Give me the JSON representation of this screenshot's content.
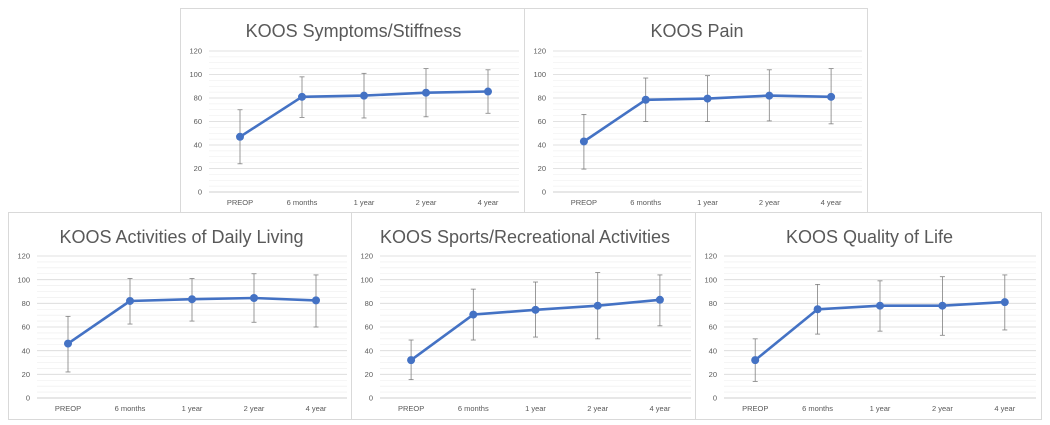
{
  "figure": {
    "chart_data": [
      {
        "type": "line",
        "title": "KOOS Symptoms/Stiffness",
        "categories": [
          "PREOP",
          "6 months",
          "1 year",
          "2 year",
          "4 year"
        ],
        "values": [
          47,
          81,
          82,
          84.5,
          85.5
        ],
        "error_low": [
          24,
          63.5,
          63,
          64,
          67
        ],
        "error_high": [
          70,
          98,
          101,
          105,
          104
        ],
        "ylim": [
          0,
          120
        ],
        "yticks": [
          "0",
          "20",
          "40",
          "60",
          "80",
          "100",
          "120"
        ],
        "grid": true,
        "color": "#4472c4"
      },
      {
        "type": "line",
        "title": "KOOS Pain",
        "categories": [
          "PREOP",
          "6 months",
          "1 year",
          "2 year",
          "4 year"
        ],
        "values": [
          43,
          78.5,
          79.5,
          82,
          81
        ],
        "error_low": [
          19.5,
          60,
          60,
          60.5,
          58
        ],
        "error_high": [
          66,
          97,
          99,
          104,
          105
        ],
        "ylim": [
          0,
          120
        ],
        "yticks": [
          "0",
          "20",
          "40",
          "60",
          "80",
          "100",
          "120"
        ],
        "grid": true,
        "color": "#4472c4"
      },
      {
        "type": "line",
        "title": "KOOS Activities of Daily Living",
        "categories": [
          "PREOP",
          "6 months",
          "1 year",
          "2 year",
          "4 year"
        ],
        "values": [
          46,
          82,
          83.5,
          84.5,
          82.5
        ],
        "error_low": [
          22,
          62.5,
          65,
          64,
          60
        ],
        "error_high": [
          69,
          101,
          101,
          105,
          104
        ],
        "ylim": [
          0,
          120
        ],
        "yticks": [
          "0",
          "20",
          "40",
          "60",
          "80",
          "100",
          "120"
        ],
        "grid": true,
        "color": "#4472c4"
      },
      {
        "type": "line",
        "title": "KOOS Sports/Recreational Activities",
        "categories": [
          "PREOP",
          "6 months",
          "1 year",
          "2 year",
          "4 year"
        ],
        "values": [
          32,
          70.5,
          74.5,
          78,
          83
        ],
        "error_low": [
          15.5,
          49,
          51.5,
          50,
          61
        ],
        "error_high": [
          49,
          92,
          98,
          106,
          104
        ],
        "ylim": [
          0,
          120
        ],
        "yticks": [
          "0",
          "20",
          "40",
          "60",
          "80",
          "100",
          "120"
        ],
        "grid": true,
        "color": "#4472c4"
      },
      {
        "type": "line",
        "title": "KOOS Quality of Life",
        "categories": [
          "PREOP",
          "6 months",
          "1 year",
          "2 year",
          "4 year"
        ],
        "values": [
          32,
          75,
          78,
          78,
          81
        ],
        "error_low": [
          14,
          54,
          56.5,
          53,
          57.5
        ],
        "error_high": [
          50,
          96,
          99,
          102.5,
          104
        ],
        "ylim": [
          0,
          120
        ],
        "yticks": [
          "0",
          "20",
          "40",
          "60",
          "80",
          "100",
          "120"
        ],
        "grid": true,
        "color": "#4472c4"
      }
    ]
  }
}
